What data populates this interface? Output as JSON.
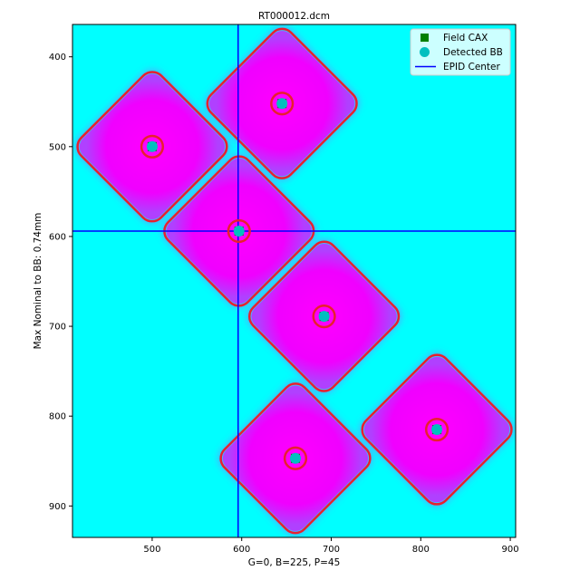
{
  "chart_data": {
    "type": "scatter",
    "title": "RT000012.dcm",
    "xlabel": "G=0, B=225, P=45",
    "ylabel": "Max Nominal to BB: 0.74mm",
    "xlim": [
      411,
      906
    ],
    "ylim": [
      935,
      364
    ],
    "y_inverted": true,
    "xticks": [
      500,
      600,
      700,
      800,
      900
    ],
    "yticks": [
      400,
      500,
      600,
      700,
      800,
      900
    ],
    "background_color": "#00ffff",
    "field_color": "#ff00ff",
    "contour_color": "#e8202e",
    "field_half_size": 63,
    "field_rotation_deg": 45,
    "bb_radius": 12,
    "fields": [
      {
        "cx": 500,
        "cy": 500
      },
      {
        "cx": 645,
        "cy": 452
      },
      {
        "cx": 597,
        "cy": 594
      },
      {
        "cx": 692,
        "cy": 689
      },
      {
        "cx": 818,
        "cy": 815
      },
      {
        "cx": 660,
        "cy": 847
      }
    ],
    "series": [
      {
        "name": "Field CAX",
        "marker": "square",
        "color": "#008000",
        "x": [
          500,
          645,
          597,
          692,
          818,
          660
        ],
        "y": [
          500,
          452,
          594,
          689,
          815,
          847
        ]
      },
      {
        "name": "Detected BB",
        "marker": "circle",
        "color": "#00bfbf",
        "x": [
          500,
          645,
          597,
          692,
          818,
          660
        ],
        "y": [
          500,
          452,
          594,
          689,
          815,
          847
        ]
      },
      {
        "name": "EPID Center",
        "marker": "line",
        "color": "#0000ff",
        "x": 596,
        "y": 594
      }
    ],
    "legend_position": "top-right",
    "grid": false
  }
}
